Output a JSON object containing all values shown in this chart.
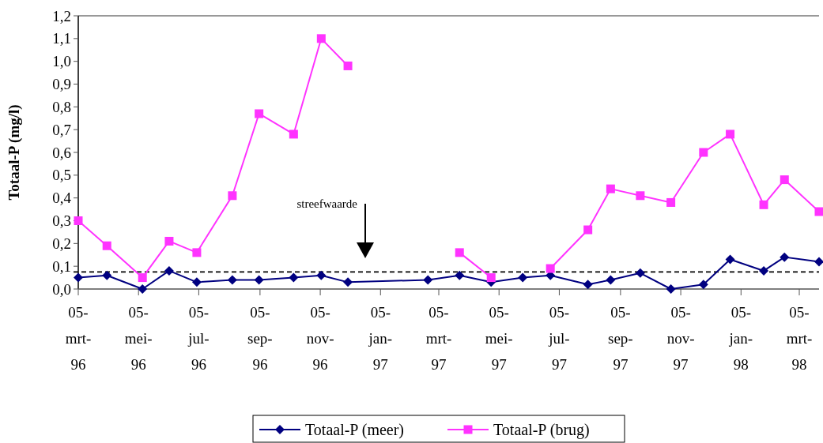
{
  "chart_data": {
    "type": "line",
    "ylabel": "Totaal-P (mg/l)",
    "x": [
      "1996-03-05",
      "1996-04-03",
      "1996-05-09",
      "1996-06-05",
      "1996-07-03",
      "1996-08-08",
      "1996-09-04",
      "1996-10-09",
      "1996-11-06",
      "1996-12-03",
      "1997-02-22",
      "1997-03-26",
      "1997-04-27",
      "1997-05-29",
      "1997-06-26",
      "1997-08-03",
      "1997-08-26",
      "1997-09-25",
      "1997-10-26",
      "1997-11-28",
      "1997-12-25",
      "1998-01-28",
      "1998-02-18",
      "1998-03-25"
    ],
    "series": [
      {
        "name": "Totaal-P (meer)",
        "color": "#000080",
        "marker": "diamond",
        "values": [
          0.05,
          0.06,
          0.0,
          0.08,
          0.03,
          0.04,
          0.04,
          0.05,
          0.06,
          0.03,
          0.04,
          0.06,
          0.03,
          0.05,
          0.06,
          0.02,
          0.04,
          0.07,
          0.0,
          0.02,
          0.13,
          0.08,
          0.14,
          0.12
        ]
      },
      {
        "name": "Totaal-P (brug)",
        "color": "#ff33ff",
        "marker": "square",
        "values": [
          0.3,
          0.19,
          0.05,
          0.21,
          0.16,
          0.41,
          0.77,
          0.68,
          1.1,
          0.98,
          null,
          0.16,
          0.05,
          null,
          0.09,
          0.26,
          0.44,
          0.41,
          0.38,
          0.6,
          0.68,
          0.37,
          0.48,
          0.34
        ]
      }
    ],
    "xlim": [
      "1996-03-05",
      "1998-03-25"
    ],
    "xticks": [
      {
        "value": "1996-03-05",
        "label": "05-mrt-96"
      },
      {
        "value": "1996-05-05",
        "label": "05-mei-96"
      },
      {
        "value": "1996-07-05",
        "label": "05-jul-96"
      },
      {
        "value": "1996-09-05",
        "label": "05-sep-96"
      },
      {
        "value": "1996-11-05",
        "label": "05-nov-96"
      },
      {
        "value": "1997-01-05",
        "label": "05-jan-97"
      },
      {
        "value": "1997-03-05",
        "label": "05-mrt-97"
      },
      {
        "value": "1997-05-05",
        "label": "05-mei-97"
      },
      {
        "value": "1997-07-05",
        "label": "05-jul-97"
      },
      {
        "value": "1997-09-05",
        "label": "05-sep-97"
      },
      {
        "value": "1997-11-05",
        "label": "05-nov-97"
      },
      {
        "value": "1998-01-05",
        "label": "05-jan-98"
      },
      {
        "value": "1998-03-05",
        "label": "05-mrt-98"
      }
    ],
    "ylim": [
      0,
      1.2
    ],
    "yticks": [
      {
        "value": 0,
        "label": "0,0"
      },
      {
        "value": 0.1,
        "label": "0,1"
      },
      {
        "value": 0.2,
        "label": "0,2"
      },
      {
        "value": 0.3,
        "label": "0,3"
      },
      {
        "value": 0.4,
        "label": "0,4"
      },
      {
        "value": 0.5,
        "label": "0,5"
      },
      {
        "value": 0.6,
        "label": "0,6"
      },
      {
        "value": 0.7,
        "label": "0,7"
      },
      {
        "value": 0.8,
        "label": "0,8"
      },
      {
        "value": 0.9,
        "label": "0,9"
      },
      {
        "value": 1.0,
        "label": "1,0"
      },
      {
        "value": 1.1,
        "label": "1,1"
      },
      {
        "value": 1.2,
        "label": "1,2"
      }
    ],
    "ref_lines": [
      {
        "axis": "y",
        "value": 0.075,
        "color": "#000000",
        "line_style": "dashed"
      }
    ],
    "annotations": [
      "streefwaarde"
    ],
    "grid": false,
    "legend": "bottom",
    "line_style": "solid"
  }
}
